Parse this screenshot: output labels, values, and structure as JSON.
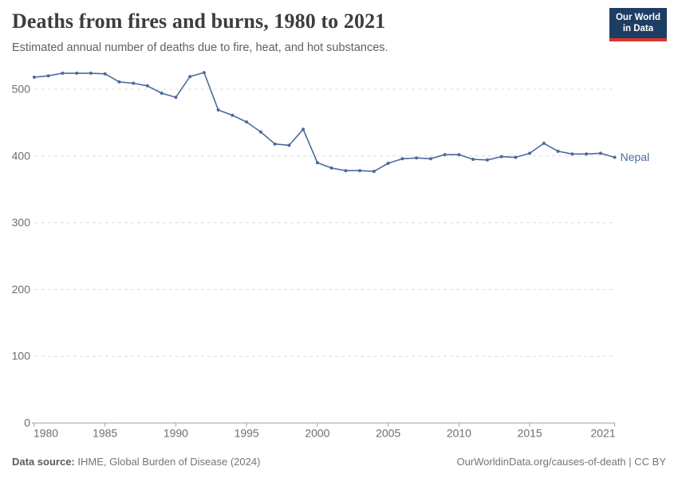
{
  "header": {
    "title": "Deaths from fires and burns, 1980 to 2021",
    "subtitle": "Estimated annual number of deaths due to fire, heat, and hot substances."
  },
  "logo": {
    "line1": "Our World",
    "line2": "in Data",
    "background_color": "#1d3d63",
    "accent_color": "#dc352c"
  },
  "chart_data": {
    "type": "line",
    "title": "Deaths from fires and burns, 1980 to 2021",
    "subtitle": "Estimated annual number of deaths due to fire, heat, and hot substances.",
    "xlabel": "",
    "ylabel": "",
    "ylim": [
      0,
      500
    ],
    "yticks": [
      0,
      100,
      200,
      300,
      400,
      500
    ],
    "xticks": [
      1980,
      1985,
      1990,
      1995,
      2000,
      2005,
      2010,
      2015,
      2021
    ],
    "grid": true,
    "legend_position": "end-of-line",
    "x": [
      1980,
      1981,
      1982,
      1983,
      1984,
      1985,
      1986,
      1987,
      1988,
      1989,
      1990,
      1991,
      1992,
      1993,
      1994,
      1995,
      1996,
      1997,
      1998,
      1999,
      2000,
      2001,
      2002,
      2003,
      2004,
      2005,
      2006,
      2007,
      2008,
      2009,
      2010,
      2011,
      2012,
      2013,
      2014,
      2015,
      2016,
      2017,
      2018,
      2019,
      2020,
      2021
    ],
    "series": [
      {
        "name": "Nepal",
        "color": "#4c6a9c",
        "values": [
          518,
          520,
          524,
          524,
          524,
          523,
          511,
          509,
          505,
          494,
          488,
          519,
          525,
          469,
          461,
          451,
          436,
          418,
          416,
          440,
          390,
          382,
          378,
          378,
          377,
          389,
          396,
          397,
          396,
          402,
          402,
          395,
          394,
          399,
          398,
          404,
          419,
          407,
          403,
          403,
          404,
          398
        ]
      }
    ]
  },
  "footer": {
    "source_label": "Data source:",
    "source_text": " IHME, Global Burden of Disease (2024)",
    "link_text": "OurWorldinData.org/causes-of-death | CC BY"
  }
}
